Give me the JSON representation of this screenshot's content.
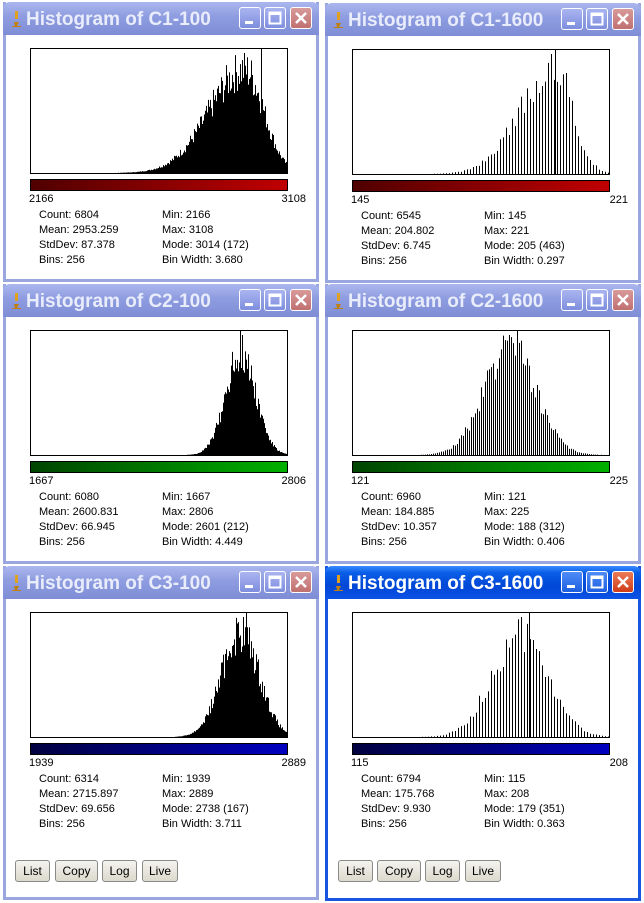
{
  "windows": [
    {
      "id": "c1-100",
      "title": "Histogram of C1-100",
      "active": false,
      "color": "#c00000",
      "lut_dark": "#500000",
      "min_label": "2166",
      "max_label": "3108",
      "stats": {
        "count": "Count: 6804",
        "min": "Min: 2166",
        "mean": "Mean: 2953.259",
        "max": "Max: 3108",
        "stddev": "StdDev: 87.378",
        "mode": "Mode: 3014 (172)",
        "bins": "Bins: 256",
        "binwidth": "Bin Width: 3.680"
      },
      "chart_data": {
        "type": "histogram",
        "x_range": [
          2166,
          3108
        ],
        "mean": 2953.259,
        "stddev": 87.378,
        "skew": "left",
        "mode_value": 3014,
        "mode_count": 172,
        "bins": 256,
        "count": 6804,
        "style": "solid"
      }
    },
    {
      "id": "c1-1600",
      "title": "Histogram of C1-1600",
      "active": false,
      "color": "#c00000",
      "lut_dark": "#500000",
      "min_label": "145",
      "max_label": "221",
      "stats": {
        "count": "Count: 6545",
        "min": "Min: 145",
        "mean": "Mean: 204.802",
        "max": "Max: 221",
        "stddev": "StdDev: 6.745",
        "mode": "Mode: 205 (463)",
        "bins": "Bins: 256",
        "binwidth": "Bin Width: 0.297"
      },
      "chart_data": {
        "type": "histogram",
        "x_range": [
          145,
          221
        ],
        "mean": 204.802,
        "stddev": 6.745,
        "skew": "left",
        "mode_value": 205,
        "mode_count": 463,
        "bins": 256,
        "count": 6545,
        "style": "comb"
      }
    },
    {
      "id": "c2-100",
      "title": "Histogram of C2-100",
      "active": false,
      "color": "#00b000",
      "lut_dark": "#004400",
      "min_label": "1667",
      "max_label": "2806",
      "stats": {
        "count": "Count: 6080",
        "min": "Min: 1667",
        "mean": "Mean: 2600.831",
        "max": "Max: 2806",
        "stddev": "StdDev: 66.945",
        "mode": "Mode: 2601 (212)",
        "bins": "Bins: 256",
        "binwidth": "Bin Width: 4.449"
      },
      "chart_data": {
        "type": "histogram",
        "x_range": [
          1667,
          2806
        ],
        "mean": 2600.831,
        "stddev": 66.945,
        "skew": "none",
        "mode_value": 2601,
        "mode_count": 212,
        "bins": 256,
        "count": 6080,
        "style": "solid"
      }
    },
    {
      "id": "c2-1600",
      "title": "Histogram of C2-1600",
      "active": false,
      "color": "#00b000",
      "lut_dark": "#004400",
      "min_label": "121",
      "max_label": "225",
      "stats": {
        "count": "Count: 6960",
        "min": "Min: 121",
        "mean": "Mean: 184.885",
        "max": "Max: 225",
        "stddev": "StdDev: 10.357",
        "mode": "Mode: 188 (312)",
        "bins": "Bins: 256",
        "binwidth": "Bin Width: 0.406"
      },
      "chart_data": {
        "type": "histogram",
        "x_range": [
          121,
          225
        ],
        "mean": 184.885,
        "stddev": 10.357,
        "skew": "none",
        "mode_value": 188,
        "mode_count": 312,
        "bins": 256,
        "count": 6960,
        "style": "comb"
      }
    },
    {
      "id": "c3-100",
      "title": "Histogram of C3-100",
      "active": false,
      "color": "#0000c0",
      "lut_dark": "#000040",
      "min_label": "1939",
      "max_label": "2889",
      "stats": {
        "count": "Count: 6314",
        "min": "Min: 1939",
        "mean": "Mean: 2715.897",
        "max": "Max: 2889",
        "stddev": "StdDev: 69.656",
        "mode": "Mode: 2738 (167)",
        "bins": "Bins: 256",
        "binwidth": "Bin Width: 3.711"
      },
      "chart_data": {
        "type": "histogram",
        "x_range": [
          1939,
          2889
        ],
        "mean": 2715.897,
        "stddev": 69.656,
        "skew": "none",
        "mode_value": 2738,
        "mode_count": 167,
        "bins": 256,
        "count": 6314,
        "style": "solid"
      }
    },
    {
      "id": "c3-1600",
      "title": "Histogram of C3-1600",
      "active": true,
      "color": "#0000c0",
      "lut_dark": "#000040",
      "min_label": "115",
      "max_label": "208",
      "stats": {
        "count": "Count: 6794",
        "min": "Min: 115",
        "mean": "Mean: 175.768",
        "max": "Max: 208",
        "stddev": "StdDev: 9.930",
        "mode": "Mode: 179 (351)",
        "bins": "Bins: 256",
        "binwidth": "Bin Width: 0.363"
      },
      "chart_data": {
        "type": "histogram",
        "x_range": [
          115,
          208
        ],
        "mean": 175.768,
        "stddev": 9.93,
        "skew": "none",
        "mode_value": 179,
        "mode_count": 351,
        "bins": 256,
        "count": 6794,
        "style": "comb"
      }
    }
  ],
  "buttons_left": {
    "list": "List",
    "copy": "Copy",
    "log": "Log",
    "live": "Live"
  },
  "buttons_right": {
    "list": "List",
    "copy": "Copy",
    "log": "Log",
    "live": "Live"
  }
}
